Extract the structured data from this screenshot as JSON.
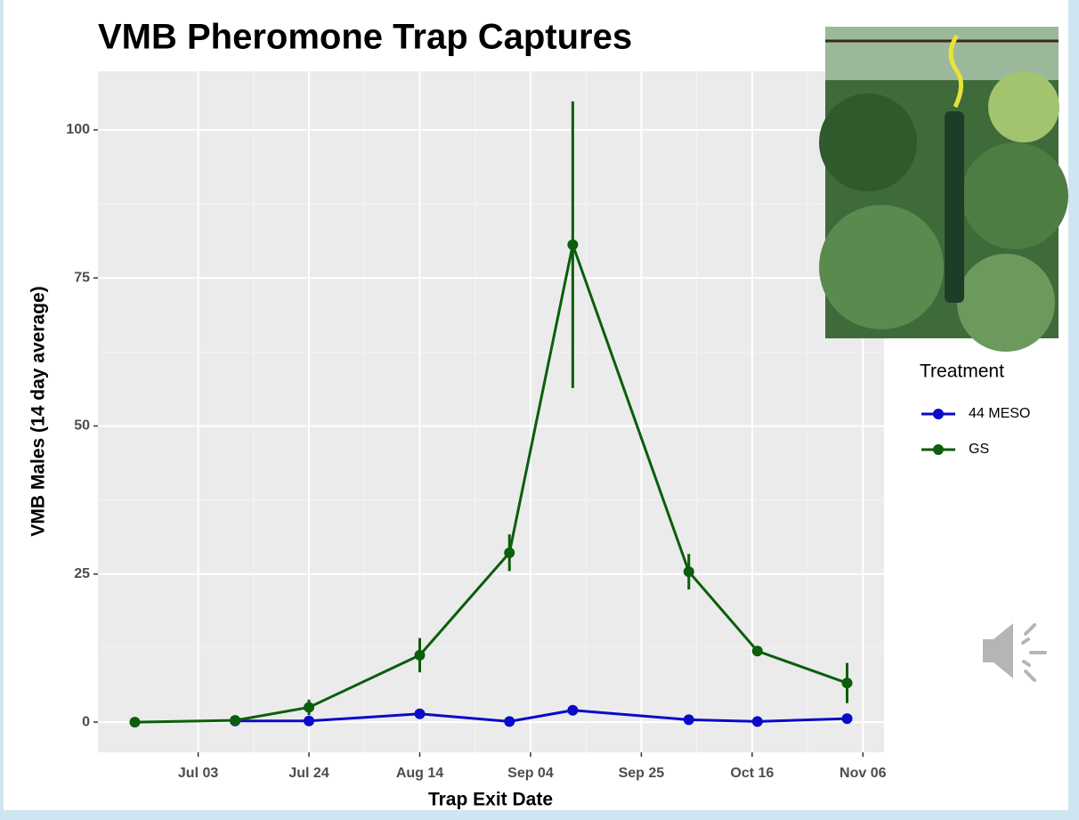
{
  "chart_data": {
    "type": "line",
    "title": "VMB Pheromone Trap Captures",
    "x_label": "Trap Exit Date",
    "y_label": "VMB Males (14 day average)",
    "legend_title": "Treatment",
    "legend_position": "right",
    "grid": true,
    "x": [
      "Jun 21",
      "Jul 10",
      "Jul 24",
      "Aug 14",
      "Aug 31",
      "Sep 12",
      "Oct 04",
      "Oct 17",
      "Nov 03"
    ],
    "xlim": [
      "Jun 14",
      "Nov 10"
    ],
    "xticks": [
      "Jul 03",
      "Jul 24",
      "Aug 14",
      "Sep 04",
      "Sep 25",
      "Oct 16",
      "Nov 06"
    ],
    "ylim": [
      -5.1,
      109.9
    ],
    "yticks": [
      0,
      25,
      50,
      75,
      100
    ],
    "series": [
      {
        "name": "44 MESO",
        "color": "#0a0ac8",
        "values": [
          null,
          0.2,
          0.2,
          1.4,
          0.1,
          2.0,
          0.4,
          0.1,
          0.6
        ],
        "errors": [
          null,
          0.3,
          0.3,
          0.4,
          0.3,
          0.5,
          0.3,
          0.3,
          0.4
        ]
      },
      {
        "name": "GS",
        "color": "#0b5e0b",
        "values": [
          0,
          0.3,
          2.5,
          11.3,
          28.6,
          80.6,
          25.4,
          12.0,
          6.6
        ],
        "errors": [
          0,
          0,
          1.3,
          2.9,
          3.1,
          24.2,
          3.0,
          0.5,
          3.4
        ]
      }
    ]
  }
}
